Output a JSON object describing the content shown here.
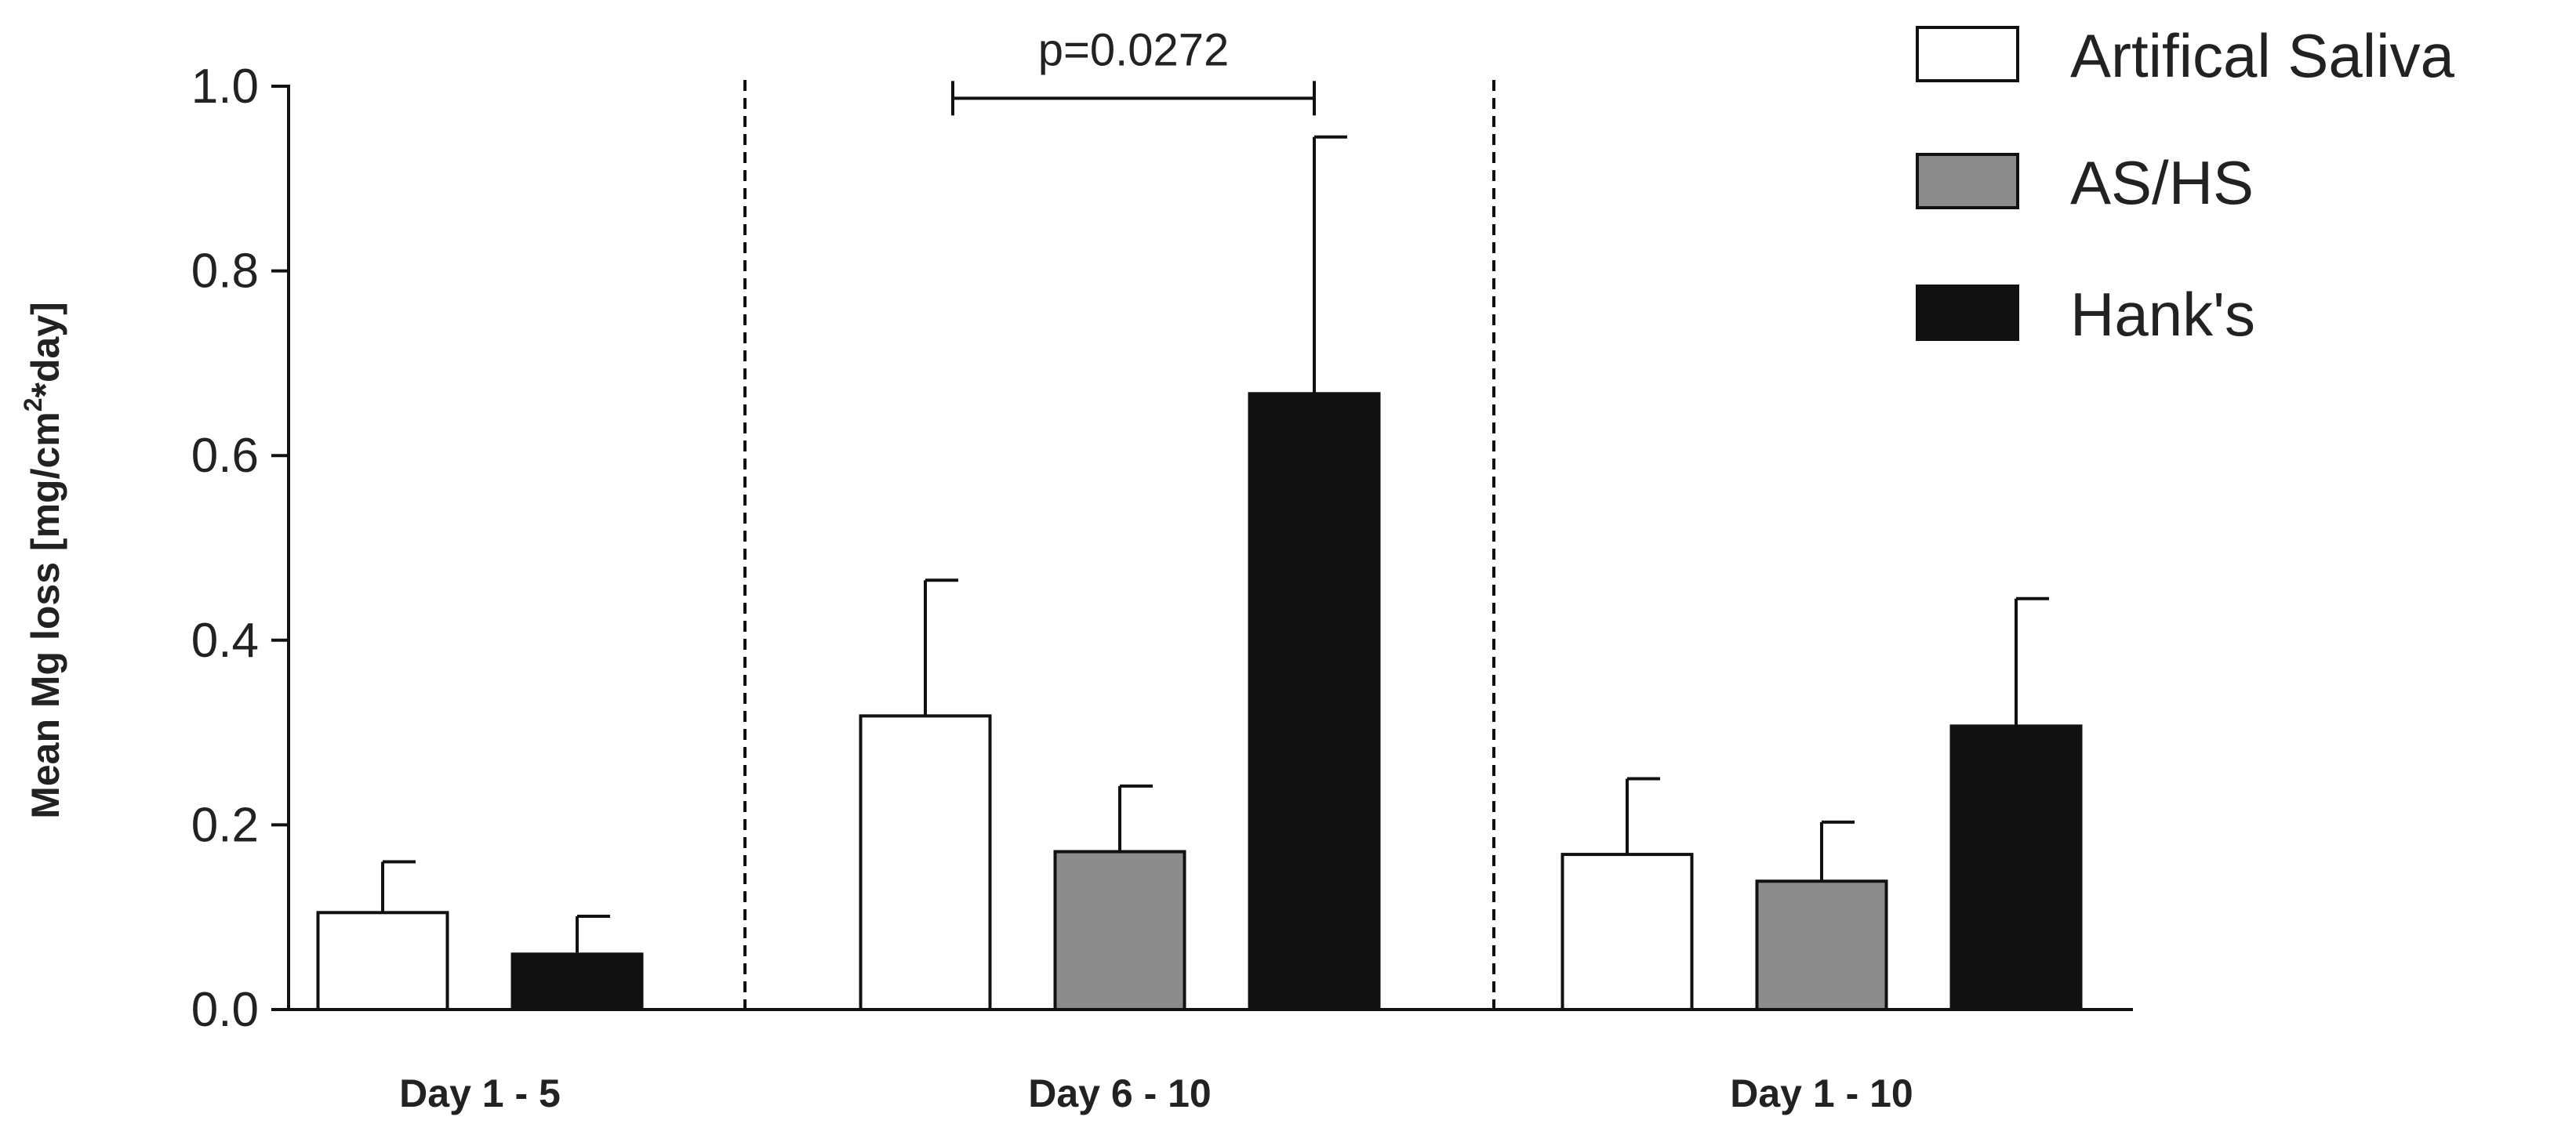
{
  "chart_data": {
    "type": "bar",
    "ylabel_main": "Mean Mg loss [mg/cm",
    "ylabel_sup": "2",
    "ylabel_tail": "*day]",
    "ylim": [
      0,
      1.0
    ],
    "yticks": [
      "0.0",
      "0.2",
      "0.4",
      "0.6",
      "0.8",
      "1.0"
    ],
    "categories": [
      "Day 1 - 5",
      "Day 6 - 10",
      "Day 1 - 10"
    ],
    "series": [
      {
        "name": "Artifical Saliva",
        "color": "#ffffff",
        "values": [
          0.105,
          0.318,
          0.168
        ],
        "errors": [
          0.055,
          0.147,
          0.082
        ]
      },
      {
        "name": "AS/HS",
        "color": "#8c8c8c",
        "values": [
          null,
          0.171,
          0.139
        ],
        "errors": [
          null,
          0.071,
          0.064
        ]
      },
      {
        "name": "Hank's",
        "color": "#111111",
        "values": [
          0.06,
          0.667,
          0.307
        ],
        "errors": [
          0.041,
          0.278,
          0.138
        ]
      }
    ],
    "annotations": [
      {
        "text": "p=0.0272",
        "category": "Day 6 - 10",
        "from_series": 0,
        "to_series": 2,
        "y": 0.987
      }
    ],
    "separators": "dashed vertical lines between groups",
    "legend_position": "top-right"
  }
}
